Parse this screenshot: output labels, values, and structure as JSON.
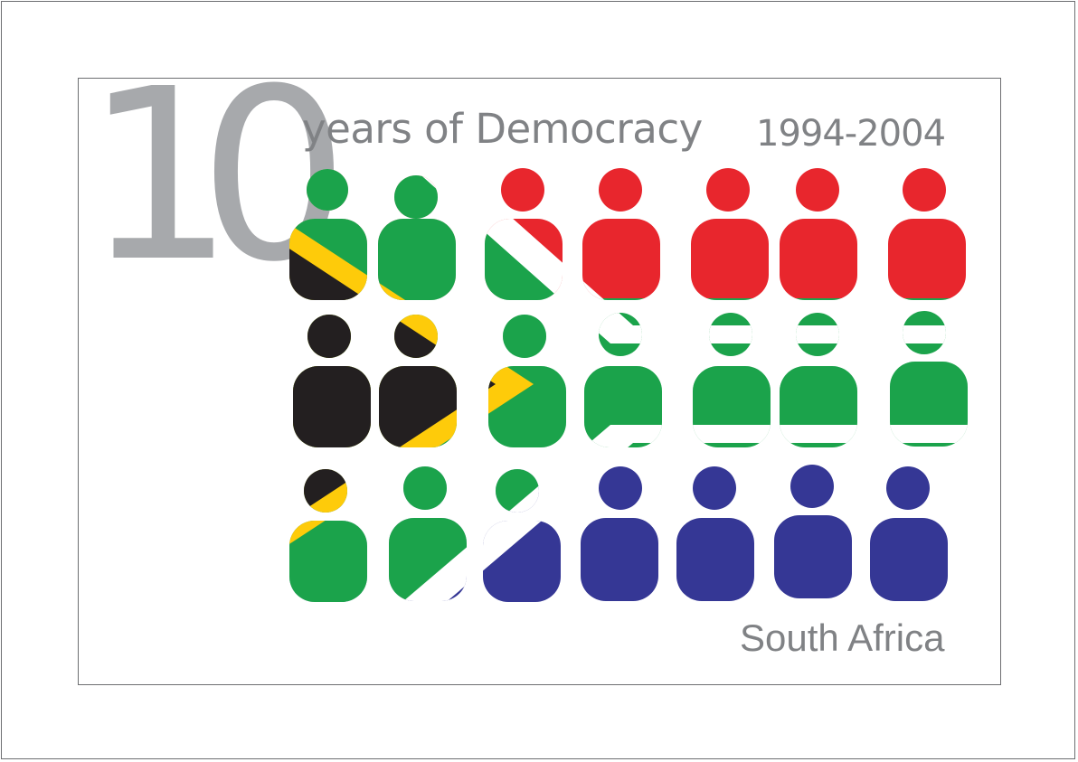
{
  "poster": {
    "number": "10",
    "headline": "years of Democracy",
    "years": "1994-2004",
    "country": "South Africa"
  },
  "colors": {
    "green": "#1ba34b",
    "red": "#e8262d",
    "blue": "#353795",
    "black": "#231f20",
    "gold": "#fecb0a",
    "white": "#ffffff",
    "text_gray": "#808285",
    "number_gray": "#a7a9ac"
  },
  "figures": {
    "rows": 3,
    "columns": 7,
    "motif": "people silhouettes forming the South African flag"
  }
}
